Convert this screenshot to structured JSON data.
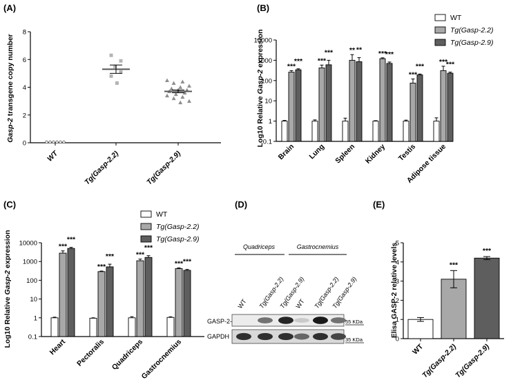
{
  "figure": {
    "colors": {
      "wt": "#ffffff",
      "g22": "#a8a8a8",
      "g29": "#5e5e5e",
      "light_marker": "#b4b4b4",
      "dark_marker": "#8e8e8e"
    },
    "legend": [
      {
        "plain": "WT",
        "pre": "",
        "italic": "",
        "post": ""
      },
      {
        "plain": "",
        "pre": "",
        "italic": "Tg(Gasp-2.2)",
        "post": ""
      },
      {
        "plain": "",
        "pre": "",
        "italic": "Tg(Gasp-2.9)",
        "post": ""
      }
    ]
  },
  "chart_data": [
    {
      "panel": "(A)",
      "type": "scatter",
      "ylabel": {
        "italic": "Gasp-2",
        "rest": " transgene copy number"
      },
      "ylim": [
        0,
        8
      ],
      "yticks": [
        "0",
        "2",
        "4",
        "6",
        "8"
      ],
      "groups": [
        {
          "label": "WT",
          "italic": true,
          "marker": "circle",
          "values": [
            0,
            0,
            0,
            0,
            0,
            0
          ],
          "mean": 0,
          "sem": 0
        },
        {
          "label": "Tg(Gasp-2.2)",
          "italic": true,
          "marker": "square",
          "values": [
            6.3,
            5.9,
            5.5,
            5.1,
            4.8,
            4.3
          ],
          "mean": 5.3,
          "sem": 0.3
        },
        {
          "label": "Tg(Gasp-2.9)",
          "italic": true,
          "marker": "triangle",
          "values": [
            4.5,
            4.4,
            4.3,
            4.1,
            4.0,
            3.9,
            3.8,
            3.8,
            3.7,
            3.6,
            3.5,
            3.4,
            3.3,
            3.2,
            3.0,
            2.9
          ],
          "mean": 3.7,
          "sem": 0.1
        }
      ]
    },
    {
      "panel": "(B)",
      "type": "bar",
      "scale": "log",
      "ylabel": {
        "pre": "Log10 Relative ",
        "italic": "Gasp-2",
        "post": " expression"
      },
      "ylim": [
        0.1,
        10000
      ],
      "yticks": [
        "0.1",
        "1",
        "10",
        "100",
        "1000",
        "10000"
      ],
      "categories": [
        "Brain",
        "Lung",
        "Spleen",
        "Kidney",
        "Testis",
        "Adipose tissue"
      ],
      "series": [
        {
          "name": "WT",
          "values": [
            1,
            1,
            1,
            1,
            1,
            1
          ],
          "err": [
            0.08,
            0.15,
            0.4,
            0.05,
            0.12,
            0.45
          ],
          "stars": [
            "",
            "",
            "",
            "",
            "",
            ""
          ]
        },
        {
          "name": "Tg(Gasp-2.2)",
          "values": [
            260,
            420,
            1000,
            1200,
            75,
            310
          ],
          "err": [
            50,
            160,
            900,
            120,
            45,
            200
          ],
          "stars": [
            "***",
            "***",
            "**",
            "***",
            "***",
            "***"
          ]
        },
        {
          "name": "Tg(Gasp-2.9)",
          "values": [
            340,
            600,
            850,
            700,
            190,
            230
          ],
          "err": [
            40,
            400,
            500,
            120,
            20,
            30
          ],
          "stars": [
            "***",
            "***",
            "**",
            "***",
            "***",
            "***"
          ]
        }
      ]
    },
    {
      "panel": "(C)",
      "type": "bar",
      "scale": "log",
      "ylabel": {
        "pre": "Log10 Relative ",
        "italic": "Gasp-2",
        "post": " expression"
      },
      "ylim": [
        0.1,
        10000
      ],
      "yticks": [
        "0.1",
        "1",
        "10",
        "100",
        "1000",
        "10000"
      ],
      "categories": [
        "Heart",
        "Pectoralis",
        "Quadriceps",
        "Gastrocnemius"
      ],
      "series": [
        {
          "name": "WT",
          "values": [
            1,
            0.95,
            1,
            1.05
          ],
          "err": [
            0.08,
            0.05,
            0.15,
            0.08
          ],
          "stars": [
            "",
            "",
            "",
            ""
          ]
        },
        {
          "name": "Tg(Gasp-2.2)",
          "values": [
            2800,
            290,
            1100,
            420
          ],
          "err": [
            900,
            20,
            250,
            40
          ],
          "stars": [
            "***",
            "***",
            "***",
            "***"
          ]
        },
        {
          "name": "Tg(Gasp-2.9)",
          "values": [
            5000,
            520,
            1650,
            340
          ],
          "err": [
            700,
            200,
            400,
            40
          ],
          "stars": [
            "***",
            "***",
            "***",
            "***"
          ]
        }
      ]
    },
    {
      "panel": "(E)",
      "type": "bar",
      "ylabel": "Elisa GASP-2 relative levels",
      "ylim": [
        0,
        5
      ],
      "yticks": [
        "0",
        "1",
        "2",
        "3",
        "4",
        "5"
      ],
      "categories": [
        "WT",
        "Tg(Gasp-2.2)",
        "Tg(Gasp-2.9)"
      ],
      "values": [
        1.0,
        3.1,
        4.2
      ],
      "err": [
        0.1,
        0.45,
        0.08
      ],
      "stars": [
        "",
        "***",
        "***"
      ]
    }
  ],
  "western_blot": {
    "panel": "(D)",
    "groups": [
      {
        "label": "Quadriceps",
        "italic": true
      },
      {
        "label": "Gastrocnemius",
        "italic": true
      }
    ],
    "lanes": [
      "WT",
      "Tg(Gasp-2.2)",
      "Tg(Gasp-2.9)",
      "WT",
      "Tg(Gasp-2.2)",
      "Tg(Gasp-2.9)"
    ],
    "rows": [
      {
        "label": "GASP-2-V5",
        "size": "55 KDa",
        "intensity": [
          0,
          0.55,
          0.9,
          0.15,
          0.95,
          0.55
        ]
      },
      {
        "label": "GAPDH",
        "size": "35 KDa",
        "intensity": [
          0.85,
          0.85,
          0.85,
          0.6,
          0.85,
          0.75
        ]
      }
    ]
  }
}
